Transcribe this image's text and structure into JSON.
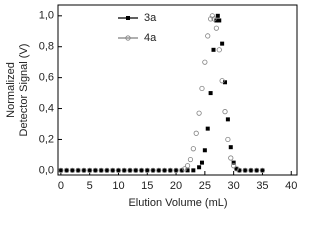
{
  "chart_data": {
    "type": "scatter",
    "xlabel": "Elution Volume (mL)",
    "ylabel": [
      "Normalized",
      "Detector Signal (V)"
    ],
    "xlim": [
      -0.5,
      41
    ],
    "ylim": [
      -0.03,
      1.07
    ],
    "xticks": [
      0,
      5,
      10,
      15,
      20,
      25,
      30,
      35,
      40
    ],
    "yticks": [
      {
        "value": 0,
        "label": "0,0"
      },
      {
        "value": 0.2,
        "label": "0,2"
      },
      {
        "value": 0.4,
        "label": "0,4"
      },
      {
        "value": 0.6,
        "label": "0,6"
      },
      {
        "value": 0.8,
        "label": "0,8"
      },
      {
        "value": 1.0,
        "label": "1,0"
      }
    ],
    "grid": false,
    "legend": "upper left",
    "series": [
      {
        "name": "3a",
        "color": "#000000",
        "marker": "square",
        "x": [
          0,
          1,
          2,
          3,
          4,
          5,
          6,
          7,
          8,
          9,
          10,
          11,
          12,
          13,
          14,
          15,
          16,
          17,
          18,
          19,
          20,
          21,
          22,
          23,
          24,
          24.5,
          25,
          25.5,
          26,
          26.5,
          27,
          27.25,
          27.5,
          28,
          28.5,
          29,
          29.5,
          30,
          30.5,
          31,
          32,
          33,
          34,
          35
        ],
        "values": [
          0,
          0,
          0,
          0,
          0,
          0,
          0,
          0,
          0,
          0,
          0,
          0,
          0,
          0,
          0,
          0,
          0,
          0,
          0,
          0,
          0,
          0,
          0,
          0,
          0.02,
          0.05,
          0.13,
          0.27,
          0.5,
          0.78,
          0.97,
          1.0,
          0.97,
          0.82,
          0.57,
          0.33,
          0.15,
          0.05,
          0.01,
          0,
          0,
          0,
          0,
          0
        ]
      },
      {
        "name": "4a",
        "color": "#808080",
        "marker": "circle",
        "x": [
          0,
          1,
          2,
          3,
          4,
          5,
          6,
          7,
          8,
          9,
          10,
          11,
          12,
          13,
          14,
          15,
          16,
          17,
          18,
          19,
          20,
          21,
          21.5,
          22,
          22.5,
          23,
          23.5,
          24,
          24.5,
          25,
          25.5,
          26,
          26.3,
          26.6,
          27,
          27.5,
          28,
          28.5,
          29,
          29.5,
          30,
          30.5,
          31,
          32,
          33,
          34,
          35
        ],
        "values": [
          0,
          0,
          0,
          0,
          0,
          0,
          0,
          0,
          0,
          0,
          0,
          0,
          0,
          0,
          0,
          0,
          0,
          0,
          0,
          0,
          0,
          0,
          0.01,
          0.03,
          0.07,
          0.14,
          0.24,
          0.37,
          0.53,
          0.7,
          0.87,
          0.98,
          1.0,
          0.98,
          0.92,
          0.78,
          0.58,
          0.38,
          0.2,
          0.08,
          0.03,
          0.01,
          0,
          0,
          0,
          0,
          0
        ]
      }
    ]
  }
}
